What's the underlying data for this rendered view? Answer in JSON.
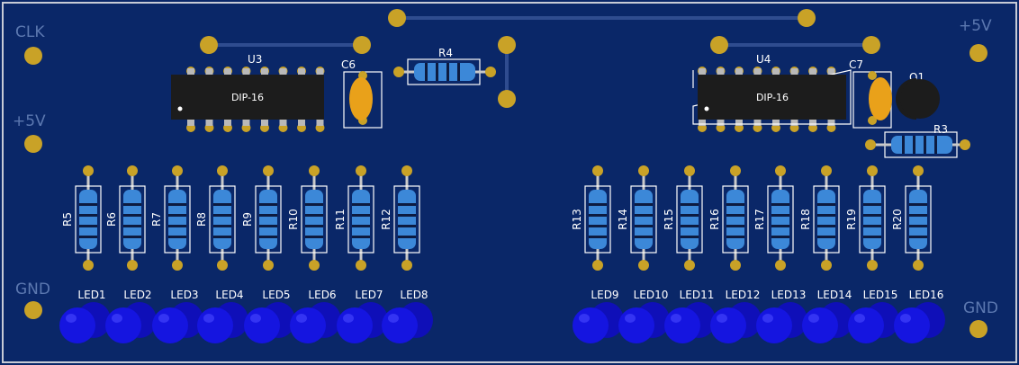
{
  "colors": {
    "board": "#0a2768",
    "outline": "#c7cbd6",
    "silk": "#ffffff",
    "faint": "#5c78b0",
    "trace": "#2f4c8f",
    "pad": "#c9a227",
    "ic": "#1c1c1c",
    "led": "#1515e0",
    "resistor": "#3c88d8",
    "cap": "#e9a11a"
  },
  "labels": {
    "left_top": "CLK",
    "left_mid": "+5V",
    "left_bottom": "GND",
    "right_top": "+5V",
    "right_bottom": "GND"
  },
  "u3": {
    "ref": "U3",
    "package": "DIP-16"
  },
  "u4": {
    "ref": "U4",
    "package": "DIP-16"
  },
  "c6": {
    "ref": "C6"
  },
  "c7": {
    "ref": "C7"
  },
  "r4": {
    "ref": "R4"
  },
  "r3": {
    "ref": "R3"
  },
  "q1": {
    "ref": "Q1"
  },
  "vresistors": [
    "R5",
    "R6",
    "R7",
    "R8",
    "R9",
    "R10",
    "R11",
    "R12",
    "R13",
    "R14",
    "R15",
    "R16",
    "R17",
    "R18",
    "R19",
    "R20"
  ],
  "leds": [
    "LED1",
    "LED2",
    "LED3",
    "LED4",
    "LED5",
    "LED6",
    "LED7",
    "LED8",
    "LED9",
    "LED10",
    "LED11",
    "LED12",
    "LED13",
    "LED14",
    "LED15",
    "LED16"
  ]
}
